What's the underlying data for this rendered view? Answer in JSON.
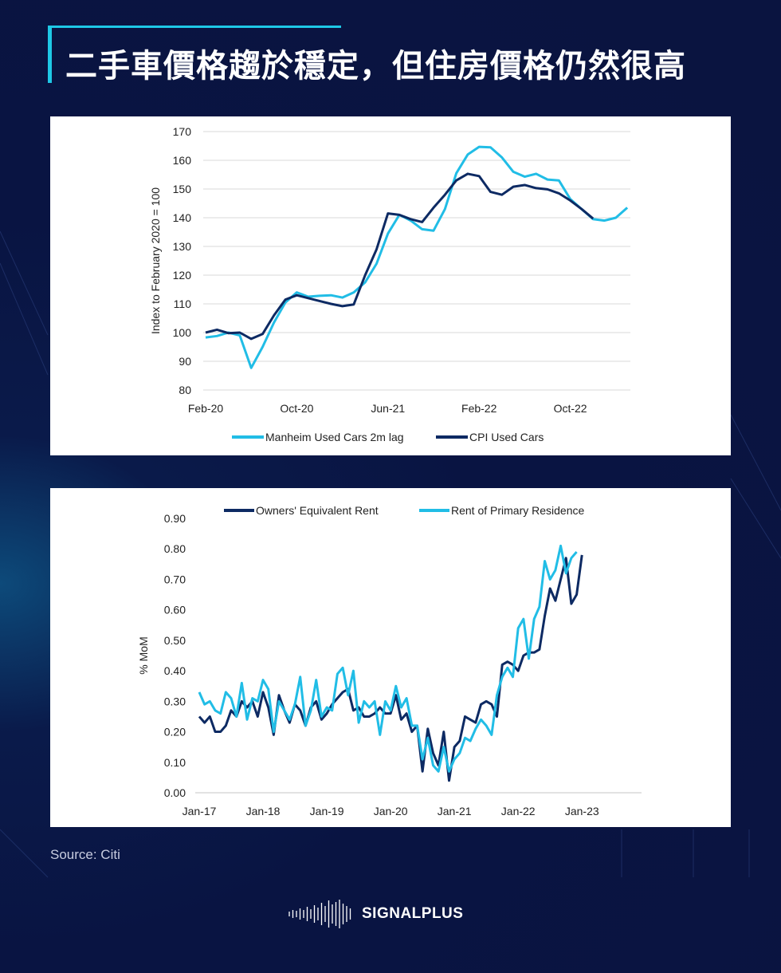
{
  "title": "二手車價格趨於穩定，但住房價格仍然很高",
  "source": "Source: Citi",
  "brand": "SIGNALPLUS",
  "colors": {
    "light": "#21bde6",
    "dark": "#0d2a63",
    "accent": "#1ec8e6"
  },
  "chart_data": [
    {
      "type": "line",
      "ylabel": "Index to February 2020 = 100",
      "ylim": [
        80,
        170
      ],
      "yticks": [
        "80",
        "90",
        "100",
        "110",
        "120",
        "130",
        "140",
        "150",
        "160",
        "170"
      ],
      "xticks": [
        "Feb-20",
        "Oct-20",
        "Jun-21",
        "Feb-22",
        "Oct-22"
      ],
      "x_start": "Feb-20",
      "legend_position": "bottom",
      "grid": true,
      "series": [
        {
          "name": "Manheim Used Cars 2m lag",
          "color": "light",
          "values": [
            98.3,
            98.8,
            100,
            99,
            87.7,
            95,
            103.5,
            110.5,
            114,
            112.5,
            112.8,
            113,
            112.2,
            114,
            117.5,
            124,
            134.5,
            141,
            139,
            136,
            135.5,
            143,
            155.5,
            162,
            164.7,
            164.5,
            161,
            156,
            154.3,
            155.3,
            153.3,
            153,
            146.5,
            143,
            139.5,
            139,
            140,
            143.5
          ]
        },
        {
          "name": "CPI Used Cars",
          "color": "dark",
          "values": [
            100,
            101,
            99.8,
            100,
            97.8,
            99.5,
            106,
            111.5,
            113,
            112,
            111,
            110,
            109.2,
            109.8,
            120,
            129,
            141.5,
            141,
            139.5,
            138.5,
            143.5,
            148,
            153,
            155.3,
            154.5,
            149,
            148,
            150.8,
            151.4,
            150.3,
            149.9,
            148.5,
            146,
            143,
            139.7
          ]
        }
      ]
    },
    {
      "type": "line",
      "ylabel": "% MoM",
      "ylim": [
        0,
        0.9
      ],
      "yticks": [
        "0.00",
        "0.10",
        "0.20",
        "0.30",
        "0.40",
        "0.50",
        "0.60",
        "0.70",
        "0.80",
        "0.90"
      ],
      "xticks": [
        "Jan-17",
        "Jan-18",
        "Jan-19",
        "Jan-20",
        "Jan-21",
        "Jan-22",
        "Jan-23"
      ],
      "x_start": "Jan-17",
      "legend_position": "top",
      "grid": false,
      "series": [
        {
          "name": "Owners' Equivalent Rent",
          "color": "dark",
          "values": [
            0.25,
            0.23,
            0.25,
            0.2,
            0.2,
            0.22,
            0.27,
            0.25,
            0.3,
            0.28,
            0.3,
            0.25,
            0.33,
            0.28,
            0.19,
            0.32,
            0.27,
            0.23,
            0.29,
            0.27,
            0.22,
            0.28,
            0.3,
            0.24,
            0.26,
            0.29,
            0.31,
            0.33,
            0.34,
            0.27,
            0.28,
            0.25,
            0.25,
            0.26,
            0.28,
            0.26,
            0.26,
            0.32,
            0.24,
            0.26,
            0.2,
            0.22,
            0.07,
            0.21,
            0.13,
            0.09,
            0.2,
            0.04,
            0.15,
            0.17,
            0.25,
            0.24,
            0.23,
            0.29,
            0.3,
            0.29,
            0.25,
            0.42,
            0.43,
            0.42,
            0.4,
            0.45,
            0.46,
            0.46,
            0.47,
            0.58,
            0.67,
            0.63,
            0.7,
            0.77,
            0.62,
            0.65,
            0.78
          ]
        },
        {
          "name": "Rent of Primary Residence",
          "color": "light",
          "values": [
            0.33,
            0.29,
            0.3,
            0.27,
            0.26,
            0.33,
            0.31,
            0.25,
            0.36,
            0.24,
            0.31,
            0.3,
            0.37,
            0.34,
            0.2,
            0.3,
            0.27,
            0.24,
            0.29,
            0.38,
            0.22,
            0.27,
            0.37,
            0.25,
            0.28,
            0.27,
            0.39,
            0.41,
            0.32,
            0.4,
            0.23,
            0.3,
            0.28,
            0.3,
            0.19,
            0.3,
            0.27,
            0.35,
            0.28,
            0.31,
            0.22,
            0.22,
            0.11,
            0.18,
            0.09,
            0.07,
            0.15,
            0.07,
            0.11,
            0.13,
            0.18,
            0.17,
            0.21,
            0.24,
            0.22,
            0.19,
            0.32,
            0.38,
            0.41,
            0.38,
            0.54,
            0.57,
            0.44,
            0.57,
            0.61,
            0.76,
            0.7,
            0.73,
            0.81,
            0.72,
            0.77,
            0.79
          ]
        }
      ]
    }
  ]
}
